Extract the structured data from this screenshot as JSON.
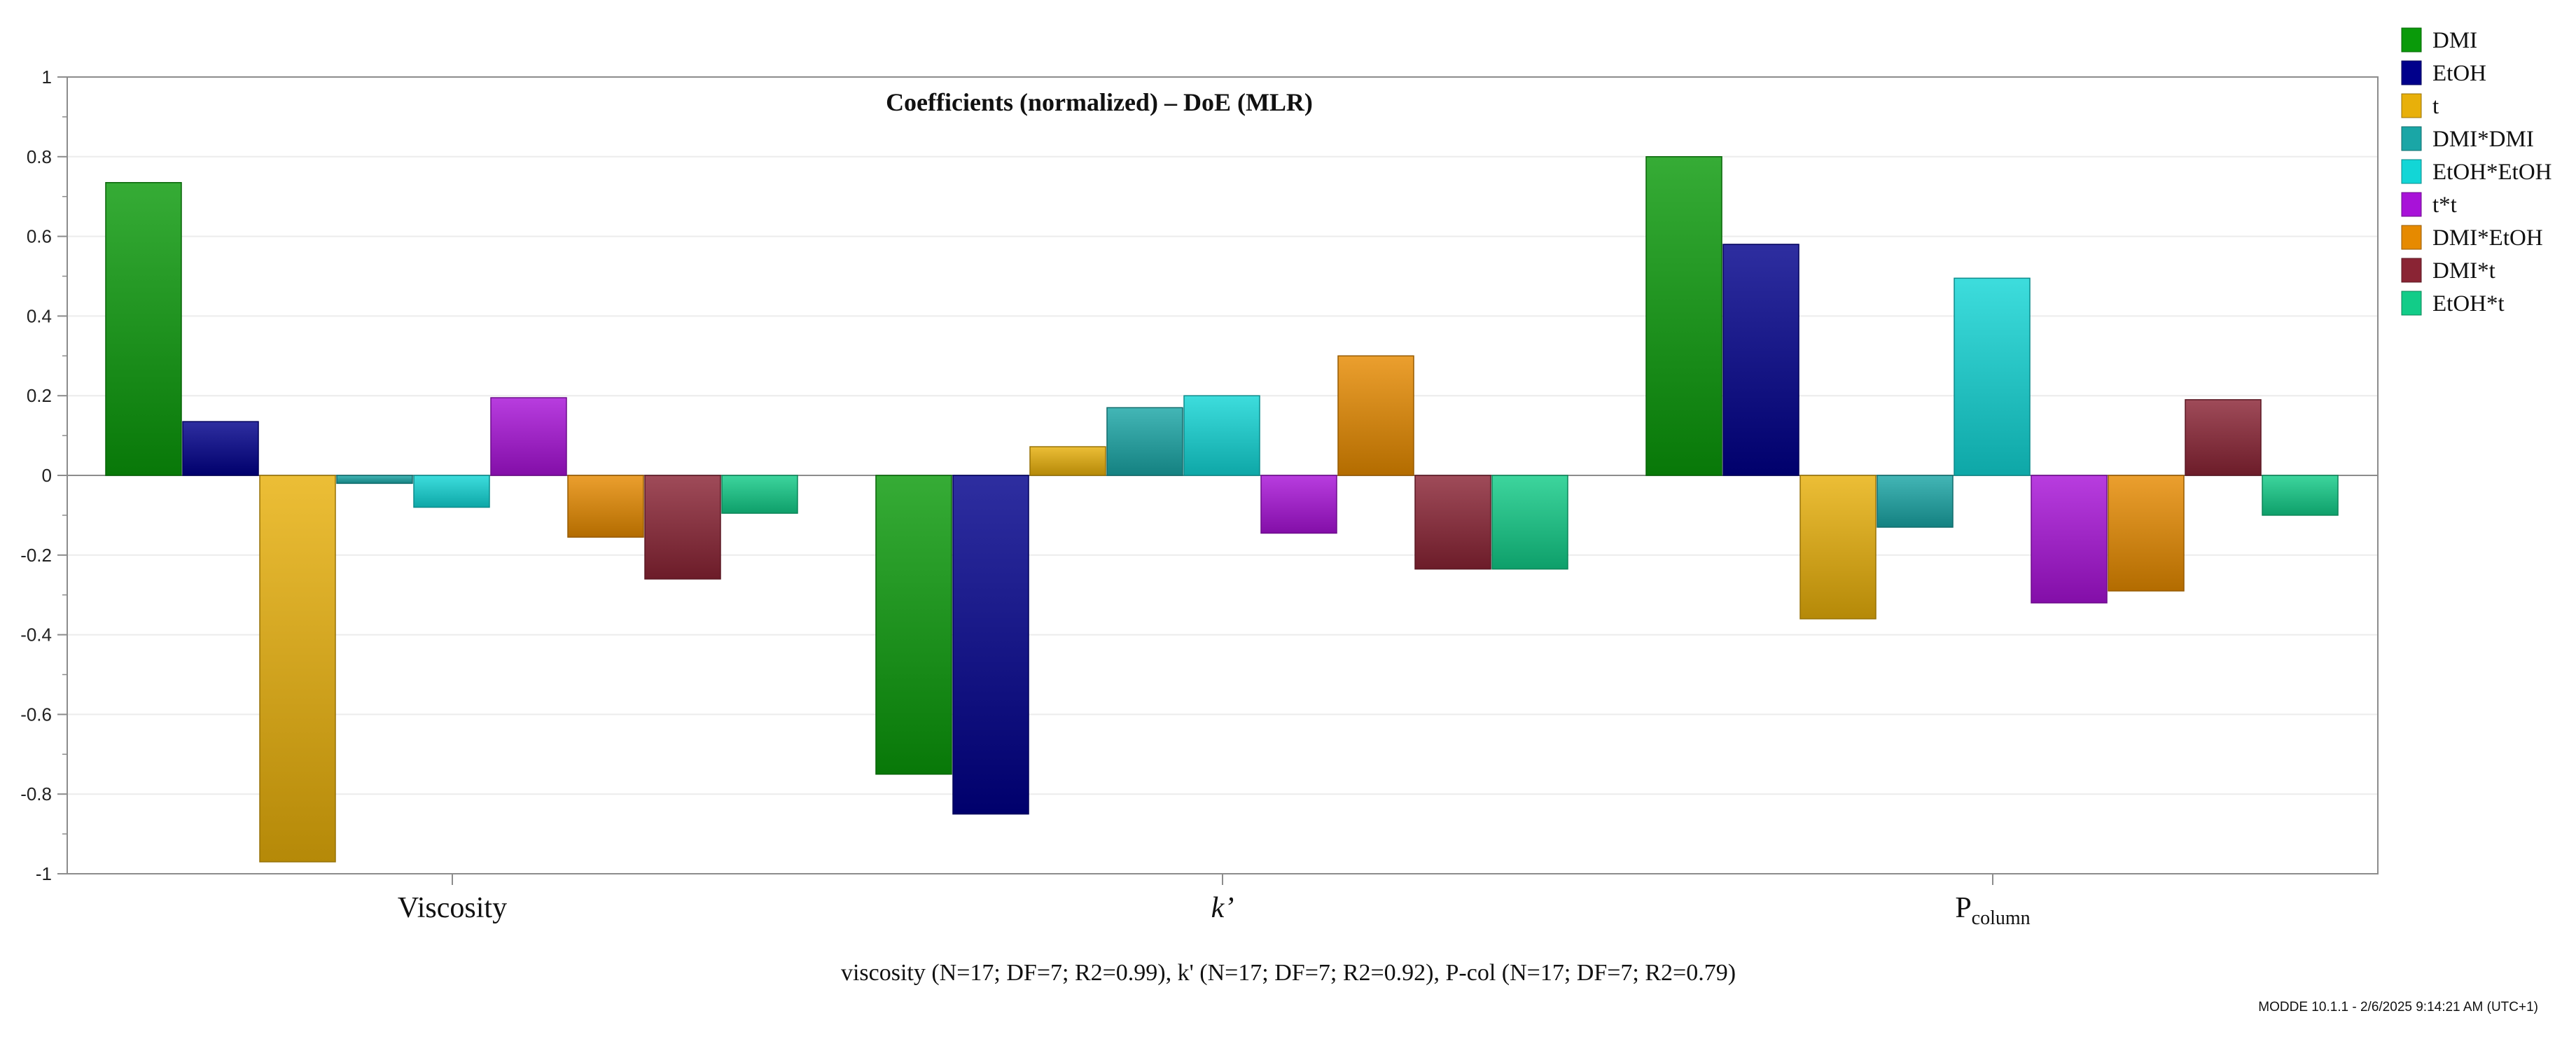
{
  "chart_data": {
    "type": "bar",
    "title": "Coefficients (normalized) – DoE (MLR)",
    "categories": [
      {
        "base": "Viscosity",
        "sub": "",
        "italic": false
      },
      {
        "base": "k’",
        "sub": "",
        "italic": true
      },
      {
        "base": "P",
        "sub": "column",
        "italic": false
      }
    ],
    "ylim": [
      -1,
      1
    ],
    "yticks": [
      "1",
      "0.8",
      "0.6",
      "0.4",
      "0.2",
      "0",
      "-0.2",
      "-0.4",
      "-0.6",
      "-0.8",
      "-1"
    ],
    "ytick_values": [
      1,
      0.8,
      0.6,
      0.4,
      0.2,
      0,
      -0.2,
      -0.4,
      -0.6,
      -0.8,
      -1
    ],
    "grid": true,
    "legend_position": "right",
    "series": [
      {
        "name": "DMI",
        "color": "#0a9a0a",
        "values": [
          0.735,
          -0.75,
          0.8
        ]
      },
      {
        "name": "EtOH",
        "color": "#00008b",
        "values": [
          0.135,
          -0.85,
          0.58
        ]
      },
      {
        "name": "t",
        "color": "#e8b00a",
        "values": [
          -0.97,
          0.072,
          -0.36
        ]
      },
      {
        "name": "DMI*DMI",
        "color": "#1aa6a6",
        "values": [
          -0.02,
          0.17,
          -0.13
        ]
      },
      {
        "name": "EtOH*EtOH",
        "color": "#12d6d6",
        "values": [
          -0.08,
          0.2,
          0.495
        ]
      },
      {
        "name": "t*t",
        "color": "#a812d8",
        "values": [
          0.195,
          -0.145,
          -0.32
        ]
      },
      {
        "name": "DMI*EtOH",
        "color": "#e68a00",
        "values": [
          -0.155,
          0.3,
          -0.29
        ]
      },
      {
        "name": "DMI*t",
        "color": "#8a2434",
        "values": [
          -0.26,
          -0.235,
          0.19
        ]
      },
      {
        "name": "EtOH*t",
        "color": "#12cc88",
        "values": [
          -0.095,
          -0.235,
          -0.1
        ]
      }
    ],
    "footer": "viscosity (N=17; DF=7; R2=0.99),  k' (N=17; DF=7; R2=0.92),  P-col (N=17; DF=7; R2=0.79)"
  },
  "version_stamp": "MODDE 10.1.1 - 2/6/2025 9:14:21 AM (UTC+1)"
}
